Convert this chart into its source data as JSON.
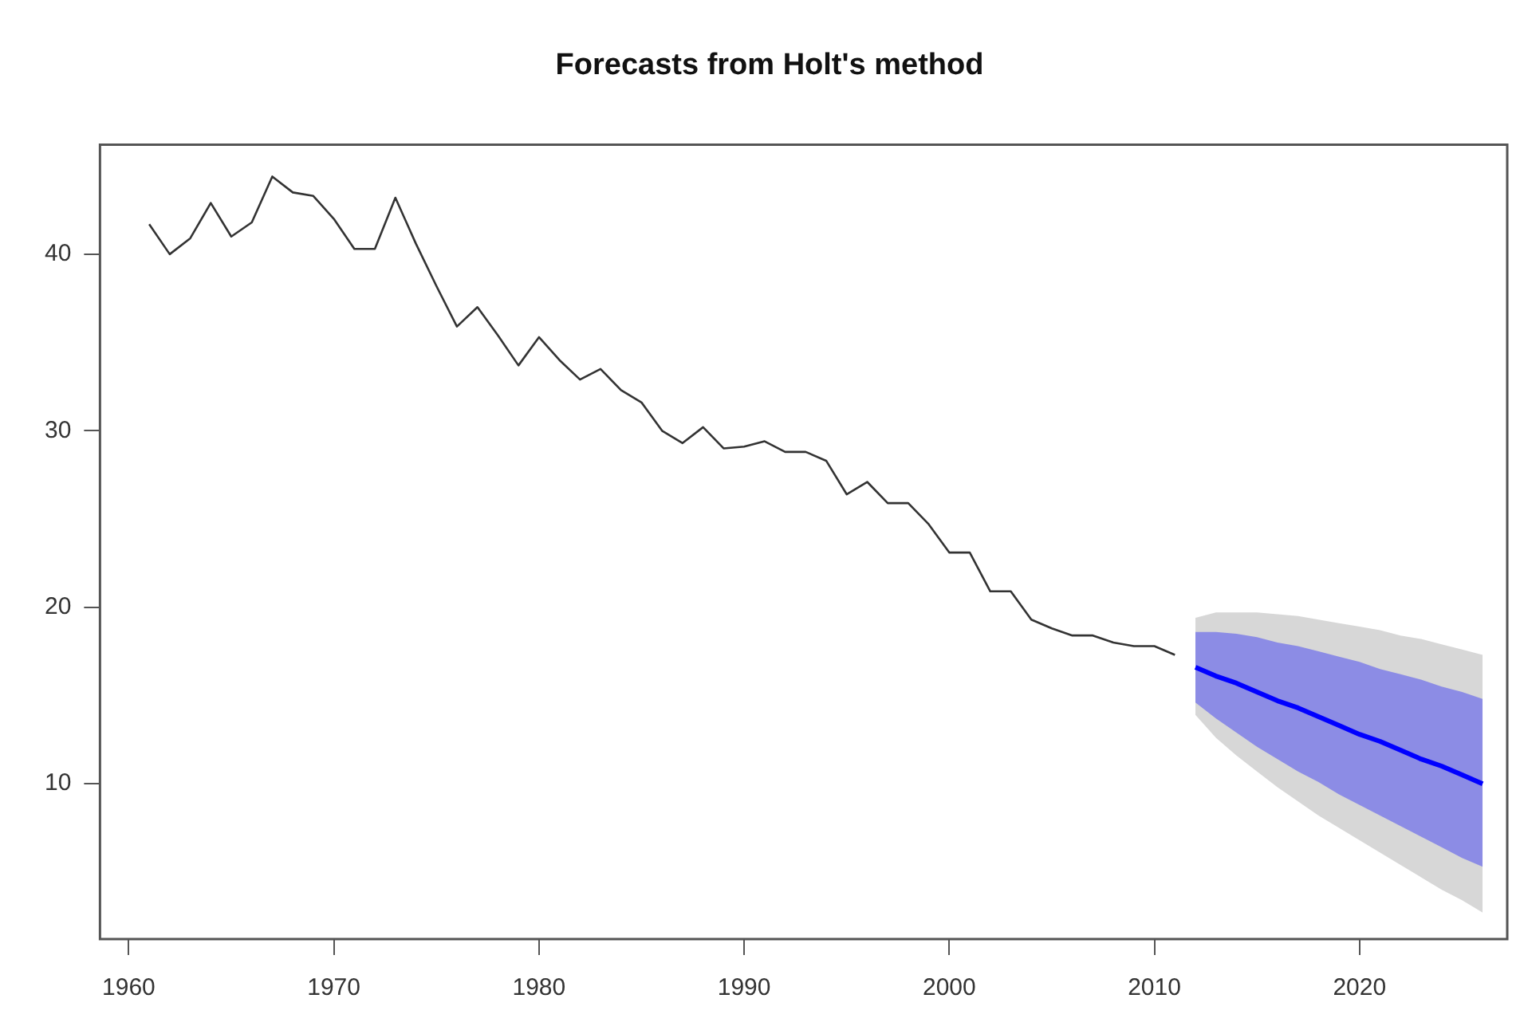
{
  "chart_data": {
    "type": "line",
    "title": "Forecasts from Holt's method",
    "xlim": [
      1958.6,
      2027.2
    ],
    "xticks": [
      1960,
      1970,
      1980,
      1990,
      2000,
      2010,
      2020
    ],
    "ylim": [
      1.2,
      46.2
    ],
    "yticks": [
      10,
      20,
      30,
      40
    ],
    "grid": false,
    "legend": false,
    "series": [
      {
        "color": "#333333",
        "x": [
          1961,
          1962,
          1963,
          1964,
          1965,
          1966,
          1967,
          1968,
          1969,
          1970,
          1971,
          1972,
          1973,
          1974,
          1975,
          1976,
          1977,
          1978,
          1979,
          1980,
          1981,
          1982,
          1983,
          1984,
          1985,
          1986,
          1987,
          1988,
          1989,
          1990,
          1991,
          1992,
          1993,
          1994,
          1995,
          1996,
          1997,
          1998,
          1999,
          2000,
          2001,
          2002,
          2003,
          2004,
          2005,
          2006,
          2007,
          2008,
          2009,
          2010,
          2011
        ],
        "values": [
          41.7,
          40.0,
          40.9,
          42.9,
          41.0,
          41.8,
          44.4,
          43.5,
          43.3,
          42.0,
          40.3,
          40.3,
          43.2,
          40.6,
          38.2,
          35.9,
          37.0,
          35.4,
          33.7,
          35.3,
          34.0,
          32.9,
          33.5,
          32.3,
          31.6,
          30.0,
          29.3,
          30.2,
          29.0,
          29.1,
          29.4,
          28.8,
          28.8,
          28.3,
          26.4,
          27.1,
          25.9,
          25.9,
          24.7,
          23.1,
          23.1,
          20.9,
          20.9,
          19.3,
          18.8,
          18.4,
          18.4,
          18.0,
          17.8,
          17.8,
          17.3
        ]
      },
      {
        "color": "#8c8c8c",
        "x": [
          2012,
          2013,
          2014,
          2015,
          2016,
          2017,
          2018,
          2019,
          2020,
          2021,
          2022,
          2023,
          2024,
          2025,
          2026
        ],
        "values": [
          null,
          null,
          null,
          null,
          null,
          null,
          null,
          null,
          null,
          null,
          null,
          null,
          null,
          null,
          null
        ],
        "lower": [
          13.9,
          12.6,
          11.6,
          10.7,
          9.8,
          9.0,
          8.2,
          7.5,
          6.8,
          6.1,
          5.4,
          4.7,
          4.0,
          3.4,
          2.7
        ],
        "upper": [
          19.4,
          19.7,
          19.7,
          19.7,
          19.6,
          19.5,
          19.3,
          19.1,
          18.9,
          18.7,
          18.4,
          18.2,
          17.9,
          17.6,
          17.3
        ]
      },
      {
        "color": "#0000ff",
        "x": [
          2012,
          2013,
          2014,
          2015,
          2016,
          2017,
          2018,
          2019,
          2020,
          2021,
          2022,
          2023,
          2024,
          2025,
          2026
        ],
        "values": [
          16.6,
          16.1,
          15.7,
          15.2,
          14.7,
          14.3,
          13.8,
          13.3,
          12.8,
          12.4,
          11.9,
          11.4,
          11.0,
          10.5,
          10.0
        ],
        "lower": [
          14.6,
          13.7,
          12.9,
          12.1,
          11.4,
          10.7,
          10.1,
          9.4,
          8.8,
          8.2,
          7.6,
          7.0,
          6.4,
          5.8,
          5.3
        ],
        "upper": [
          18.6,
          18.6,
          18.5,
          18.3,
          18.0,
          17.8,
          17.5,
          17.2,
          16.9,
          16.5,
          16.2,
          15.9,
          15.5,
          15.2,
          14.8
        ]
      }
    ]
  }
}
